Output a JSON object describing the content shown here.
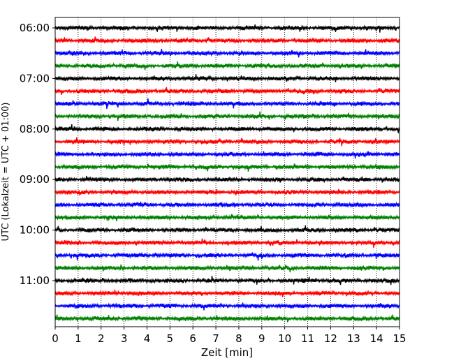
{
  "chart_data": {
    "type": "line",
    "title": "",
    "xlabel": "Zeit  [min]",
    "ylabel": "UTC (Lokalzeit = UTC + 01:00)",
    "xlim": [
      0,
      15
    ],
    "x_ticks": [
      "0",
      "1",
      "2",
      "3",
      "4",
      "5",
      "6",
      "7",
      "8",
      "9",
      "10",
      "11",
      "12",
      "13",
      "14",
      "15"
    ],
    "y_ticks": [
      "06:00",
      "07:00",
      "08:00",
      "09:00",
      "10:00",
      "11:00"
    ],
    "grid": "vertical dotted lines at each minute",
    "trace_interval_min": 15,
    "trace_count": 24,
    "first_trace_start": "06:00",
    "color_cycle": [
      "#000000",
      "#ff0000",
      "#0000ff",
      "#008000"
    ]
  }
}
